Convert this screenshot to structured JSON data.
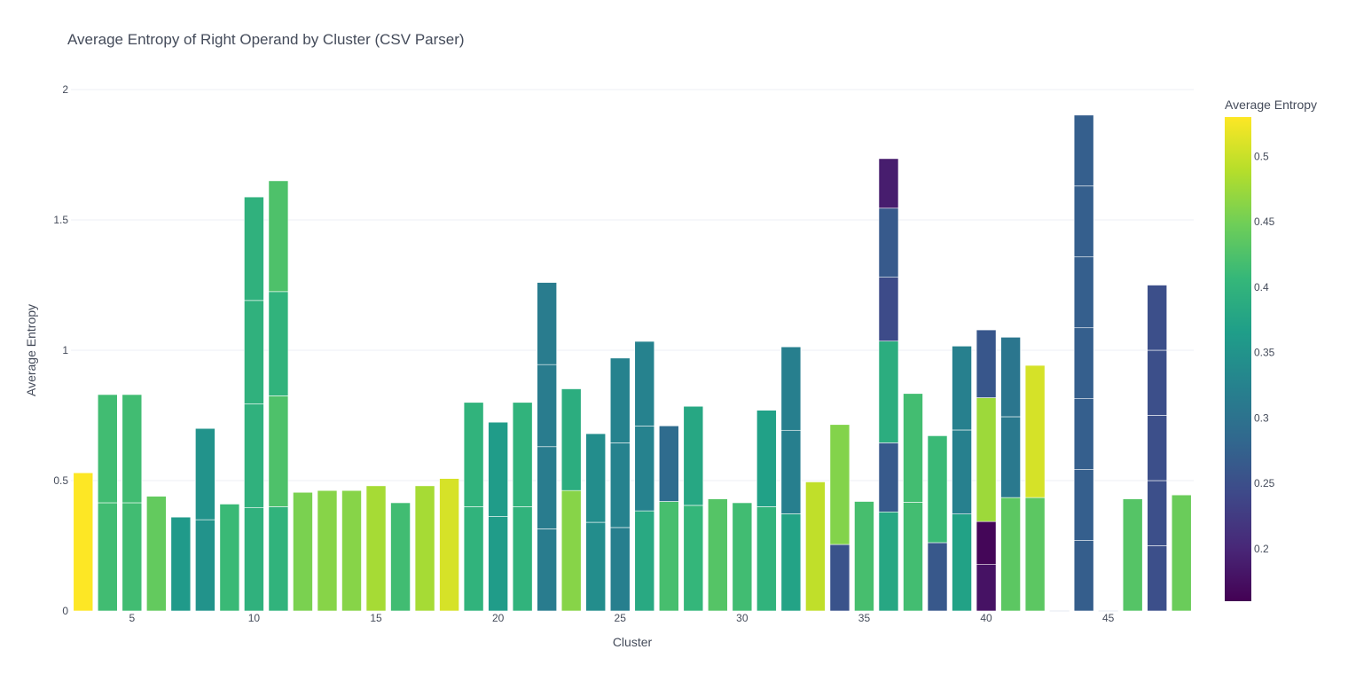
{
  "chart_data": {
    "type": "bar",
    "title": "Average Entropy of Right Operand by Cluster (CSV Parser)",
    "xlabel": "Cluster",
    "ylabel": "Average Entropy",
    "xlim": [
      2.5,
      48.5
    ],
    "ylim": [
      0,
      2
    ],
    "x_ticks": [
      5,
      10,
      15,
      20,
      25,
      30,
      35,
      40,
      45
    ],
    "y_ticks": [
      0,
      0.5,
      1,
      1.5,
      2
    ],
    "barmode": "stack",
    "grid": true,
    "colorscale": "Viridis",
    "colorbar": {
      "title": "Average Entropy",
      "range": [
        0.16,
        0.53
      ],
      "ticks": [
        0.2,
        0.25,
        0.3,
        0.35,
        0.4,
        0.45,
        0.5
      ]
    },
    "bars": [
      {
        "cluster": 3,
        "segments": [
          0.53
        ]
      },
      {
        "cluster": 4,
        "segments": [
          0.415,
          0.415
        ]
      },
      {
        "cluster": 5,
        "segments": [
          0.415,
          0.415
        ]
      },
      {
        "cluster": 6,
        "segments": [
          0.44
        ]
      },
      {
        "cluster": 7,
        "segments": [
          0.36
        ]
      },
      {
        "cluster": 8,
        "segments": [
          0.35,
          0.35
        ]
      },
      {
        "cluster": 9,
        "segments": [
          0.41
        ]
      },
      {
        "cluster": 10,
        "segments": [
          0.397,
          0.397,
          0.397,
          0.397
        ]
      },
      {
        "cluster": 11,
        "segments": [
          0.4,
          0.425,
          0.4,
          0.425
        ]
      },
      {
        "cluster": 12,
        "segments": [
          0.455
        ]
      },
      {
        "cluster": 13,
        "segments": [
          0.462
        ]
      },
      {
        "cluster": 14,
        "segments": [
          0.462
        ]
      },
      {
        "cluster": 15,
        "segments": [
          0.48
        ]
      },
      {
        "cluster": 16,
        "segments": [
          0.415
        ]
      },
      {
        "cluster": 17,
        "segments": [
          0.48
        ]
      },
      {
        "cluster": 18,
        "segments": [
          0.508
        ]
      },
      {
        "cluster": 19,
        "segments": [
          0.4,
          0.4
        ]
      },
      {
        "cluster": 20,
        "segments": [
          0.362,
          0.362
        ]
      },
      {
        "cluster": 21,
        "segments": [
          0.4,
          0.4
        ]
      },
      {
        "cluster": 22,
        "segments": [
          0.315,
          0.315,
          0.315,
          0.315
        ]
      },
      {
        "cluster": 23,
        "segments": [
          0.462,
          0.39
        ]
      },
      {
        "cluster": 24,
        "segments": [
          0.34,
          0.34
        ]
      },
      {
        "cluster": 25,
        "segments": [
          0.32,
          0.325,
          0.325
        ]
      },
      {
        "cluster": 26,
        "segments": [
          0.384,
          0.325,
          0.325
        ]
      },
      {
        "cluster": 27,
        "segments": [
          0.42,
          0.29
        ]
      },
      {
        "cluster": 28,
        "segments": [
          0.405,
          0.38
        ]
      },
      {
        "cluster": 29,
        "segments": [
          0.43
        ]
      },
      {
        "cluster": 30,
        "segments": [
          0.415
        ]
      },
      {
        "cluster": 31,
        "segments": [
          0.4,
          0.37
        ]
      },
      {
        "cluster": 32,
        "segments": [
          0.373,
          0.32,
          0.32
        ]
      },
      {
        "cluster": 33,
        "segments": [
          0.495
        ]
      },
      {
        "cluster": 34,
        "segments": [
          0.255,
          0.46
        ]
      },
      {
        "cluster": 35,
        "segments": [
          0.42
        ]
      },
      {
        "cluster": 36,
        "segments": [
          0.38,
          0.265,
          0.39,
          0.245,
          0.265,
          0.19
        ]
      },
      {
        "cluster": 37,
        "segments": [
          0.417,
          0.417
        ]
      },
      {
        "cluster": 38,
        "segments": [
          0.262,
          0.41
        ]
      },
      {
        "cluster": 39,
        "segments": [
          0.372,
          0.322,
          0.322
        ]
      },
      {
        "cluster": 40,
        "segments": [
          0.178,
          0.165,
          0.475,
          0.26
        ]
      },
      {
        "cluster": 41,
        "segments": [
          0.435,
          0.31,
          0.305
        ]
      },
      {
        "cluster": 42,
        "segments": [
          0.435,
          0.507
        ]
      },
      {
        "cluster": 43,
        "segments": [
          0
        ]
      },
      {
        "cluster": 44,
        "segments": [
          0.27,
          0.272,
          0.272,
          0.272,
          0.272,
          0.272,
          0.272
        ]
      },
      {
        "cluster": 45,
        "segments": [
          0
        ]
      },
      {
        "cluster": 46,
        "segments": [
          0.43
        ]
      },
      {
        "cluster": 47,
        "segments": [
          0.25,
          0.25,
          0.25,
          0.25,
          0.25
        ]
      },
      {
        "cluster": 48,
        "segments": [
          0.445
        ]
      }
    ]
  }
}
